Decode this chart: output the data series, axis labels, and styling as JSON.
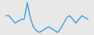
{
  "x": [
    0,
    1,
    2,
    3,
    4,
    5,
    6,
    7,
    8,
    9,
    10,
    11,
    12,
    13,
    14,
    15,
    16,
    17,
    18,
    19,
    20,
    21,
    22,
    23,
    24,
    25,
    26,
    27
  ],
  "y": [
    5,
    5,
    4,
    3,
    3.5,
    4,
    4,
    8.5,
    4.5,
    2,
    1,
    0.5,
    1,
    1.5,
    2,
    1.5,
    1,
    0.5,
    1.5,
    3,
    4.5,
    5,
    4,
    3,
    4,
    5,
    4.5,
    4
  ],
  "line_color": "#3a9fd8",
  "linewidth": 1.0,
  "background_color": "#e8e8e8",
  "ylim_min": 0,
  "ylim_max": 9
}
